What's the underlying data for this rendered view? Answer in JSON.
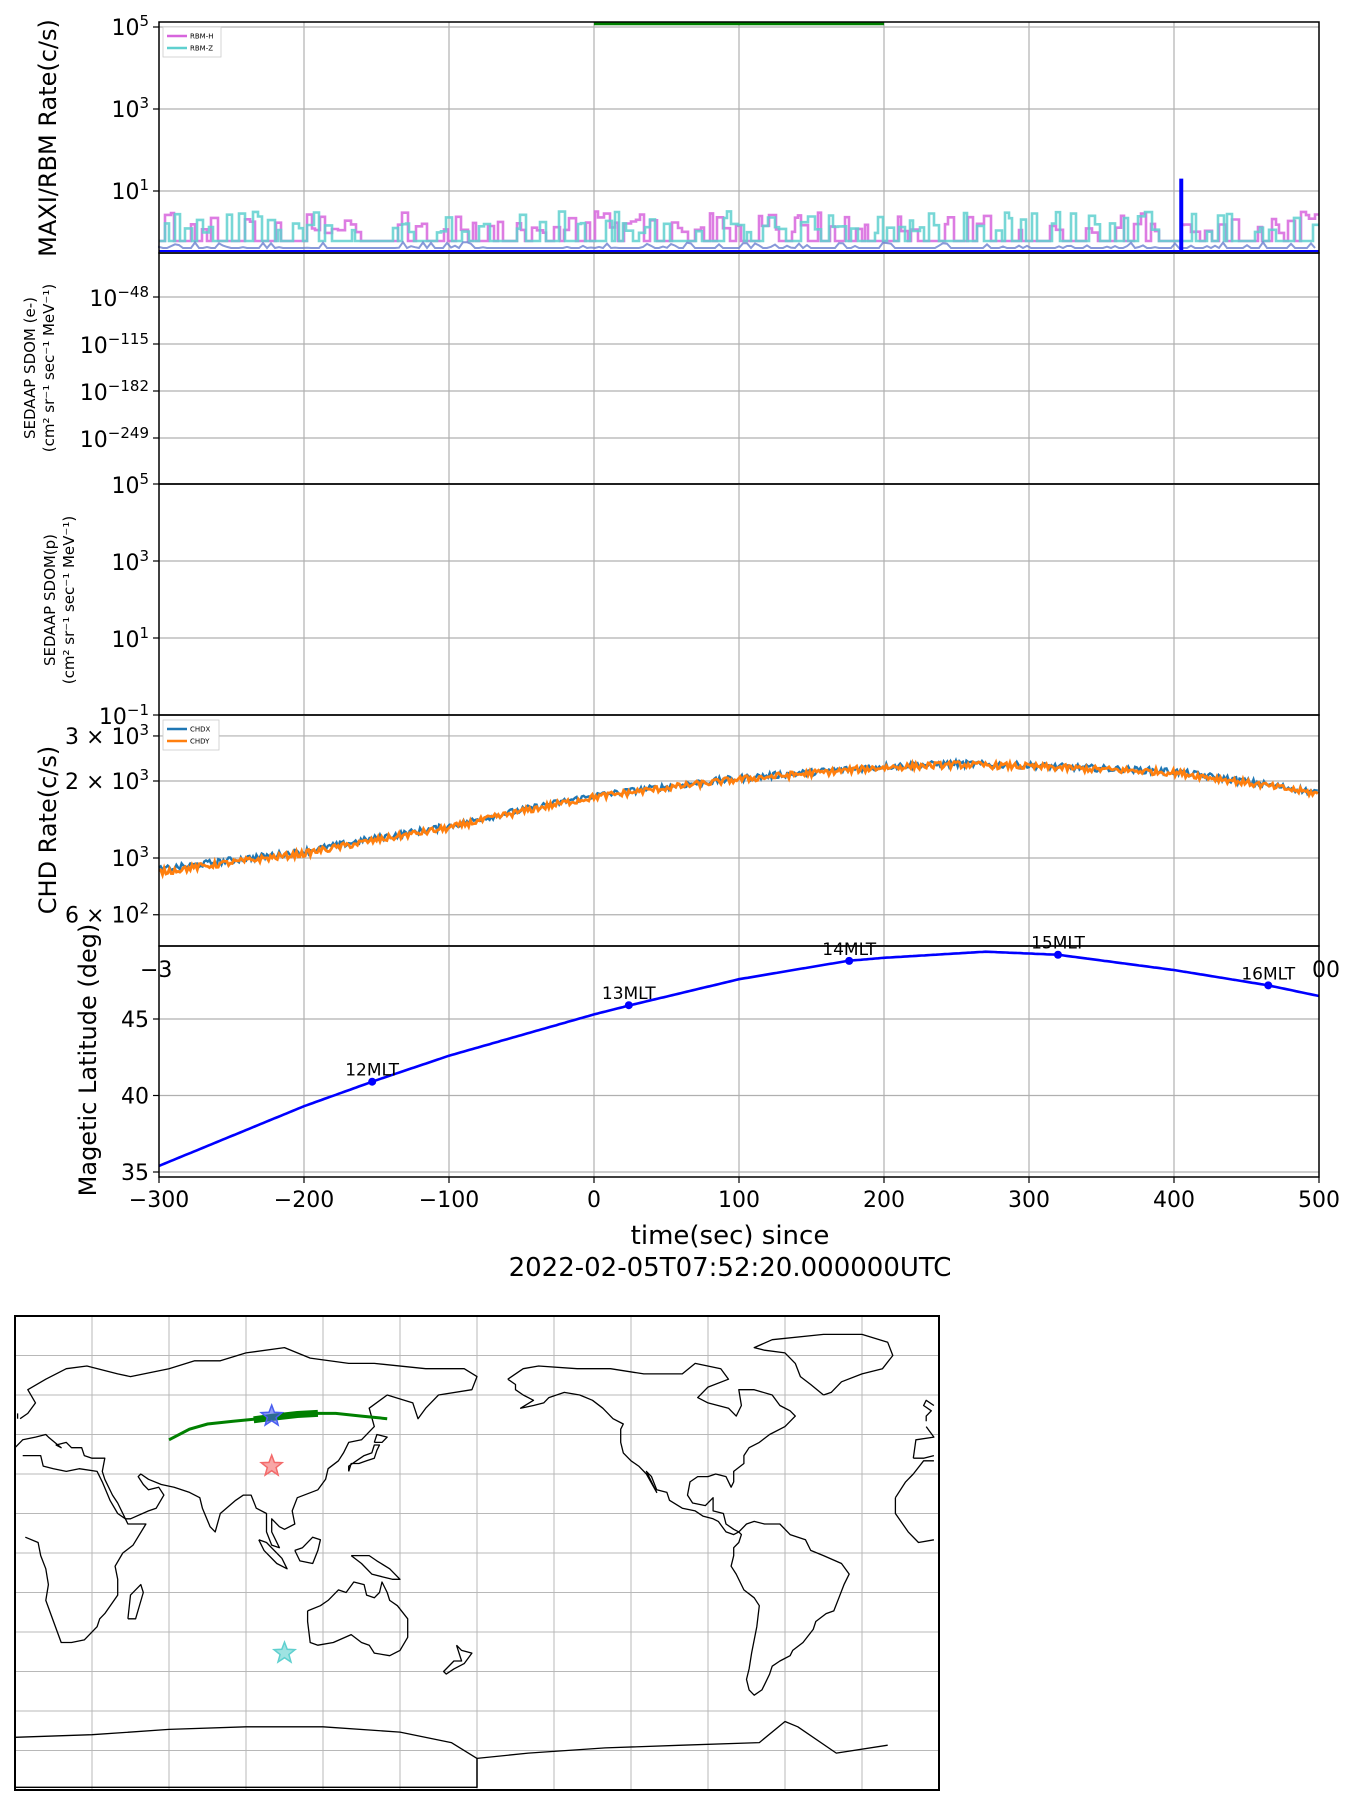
{
  "chart_data": [
    {
      "type": "line",
      "panel": "rbm",
      "ylabel": "MAXI/RBM Rate(c/s)",
      "yscale": "log",
      "yticks": [
        10,
        1000,
        100000
      ],
      "ytick_labels": [
        {
          "base": "10",
          "exp": "1"
        },
        {
          "base": "10",
          "exp": "3"
        },
        {
          "base": "10",
          "exp": "5"
        }
      ],
      "xlim": [
        -300,
        500
      ],
      "grid": true,
      "legend": {
        "position": "top-left",
        "entries": [
          {
            "name": "RBM-H",
            "color": "#d765dd"
          },
          {
            "name": "RBM-Z",
            "color": "#5fd0cf"
          }
        ]
      },
      "series": [
        {
          "name": "RBM-H",
          "color": "#d765dd",
          "approx_range": [
            1,
            3
          ]
        },
        {
          "name": "RBM-Z",
          "color": "#5fd0cf",
          "approx_range": [
            1,
            3
          ]
        }
      ],
      "annotations": [
        {
          "kind": "horizontal-bar",
          "x0": 0,
          "x1": 200,
          "y": 120000,
          "color": "#008000"
        },
        {
          "kind": "spike",
          "x": 405,
          "y": 20,
          "color": "#0000ff"
        }
      ]
    },
    {
      "type": "line",
      "panel": "sdom-e",
      "ylabel": [
        "SEDAAP SDOM (e-)",
        "(cm² sr⁻¹ sec⁻¹ MeV⁻¹)"
      ],
      "yscale": "log",
      "ytick_labels": [
        {
          "base": "10",
          "exp": "−48"
        },
        {
          "base": "10",
          "exp": "−115"
        },
        {
          "base": "10",
          "exp": "−182"
        },
        {
          "base": "10",
          "exp": "−249"
        }
      ],
      "xlim": [
        -300,
        500
      ],
      "grid": true,
      "series": []
    },
    {
      "type": "line",
      "panel": "sdom-p",
      "ylabel": [
        "SEDAAP SDOM(p)",
        "(cm² sr⁻¹ sec⁻¹ MeV⁻¹)"
      ],
      "yscale": "log",
      "ylim": [
        0.1,
        100000
      ],
      "ytick_labels": [
        {
          "base": "10",
          "exp": "5"
        },
        {
          "base": "10",
          "exp": "3"
        },
        {
          "base": "10",
          "exp": "1"
        },
        {
          "base": "10",
          "exp": "−1"
        }
      ],
      "xlim": [
        -300,
        500
      ],
      "grid": true,
      "series": []
    },
    {
      "type": "line",
      "panel": "chd",
      "ylabel": "CHD Rate(c/s)",
      "yscale": "log",
      "ylim": [
        500,
        3500
      ],
      "ytick_labels": [
        {
          "base": "3 × 10",
          "exp": "3",
          "value": 3000
        },
        {
          "base": "2 × 10",
          "exp": "3",
          "value": 2000
        },
        {
          "base": "10",
          "exp": "3",
          "value": 1000
        },
        {
          "base": "6 × 10",
          "exp": "2",
          "value": 600
        }
      ],
      "xlim": [
        -300,
        500
      ],
      "grid": true,
      "legend": {
        "position": "top-left",
        "entries": [
          {
            "name": "CHDX",
            "color": "#1f77b4"
          },
          {
            "name": "CHDY",
            "color": "#ff7f0e"
          }
        ]
      },
      "series": [
        {
          "name": "CHDX",
          "color": "#1f77b4",
          "x": [
            -300,
            -200,
            -100,
            0,
            100,
            200,
            250,
            300,
            400,
            500
          ],
          "y": [
            900,
            1060,
            1330,
            1750,
            2050,
            2280,
            2340,
            2300,
            2180,
            1800
          ]
        },
        {
          "name": "CHDY",
          "color": "#ff7f0e",
          "x": [
            -300,
            -200,
            -100,
            0,
            100,
            200,
            250,
            300,
            400,
            500
          ],
          "y": [
            880,
            1040,
            1310,
            1730,
            2030,
            2260,
            2320,
            2280,
            2160,
            1780
          ]
        }
      ]
    },
    {
      "type": "line",
      "panel": "maglat",
      "ylabel": "Magetic Latitude  (deg)",
      "xlabel": "time(sec) since",
      "xlabel2": "2022-02-05T07:52:20.000000UTC",
      "ylim": [
        35,
        50
      ],
      "yticks": [
        35,
        40,
        45
      ],
      "xlim": [
        -300,
        500
      ],
      "xticks": [
        -300,
        -200,
        -100,
        0,
        100,
        200,
        300,
        400,
        500
      ],
      "xtick_labels": [
        "−300",
        "−200",
        "−100",
        "0",
        "100",
        "200",
        "300",
        "400",
        "500"
      ],
      "grid": true,
      "series": [
        {
          "name": "",
          "color": "#0000ff",
          "x": [
            -300,
            -200,
            -150,
            -100,
            0,
            25,
            100,
            175,
            200,
            270,
            320,
            400,
            465,
            500
          ],
          "y": [
            35.4,
            39.3,
            41.0,
            42.6,
            45.3,
            45.9,
            47.6,
            48.8,
            49.0,
            49.4,
            49.2,
            48.2,
            47.2,
            46.5
          ]
        }
      ],
      "markers": [
        {
          "label": "12MLT",
          "x": -153,
          "y": 40.9
        },
        {
          "label": "13MLT",
          "x": 24,
          "y": 45.9
        },
        {
          "label": "14MLT",
          "x": 176,
          "y": 48.8
        },
        {
          "label": "15MLT",
          "x": 320,
          "y": 49.2
        },
        {
          "label": "16MLT",
          "x": 465,
          "y": 47.2
        }
      ],
      "overlap_tick_labels": [
        {
          "text": "−3",
          "near": "top-left"
        },
        {
          "text": "00",
          "near": "top-right"
        }
      ]
    },
    {
      "type": "map",
      "panel": "world-map",
      "projection": "plate-carree",
      "central_longitude": 180,
      "grid": true,
      "track_color": "#008000",
      "markers": [
        {
          "kind": "star",
          "color": "#4a5ef0",
          "lon": 100,
          "lat": 52
        },
        {
          "kind": "star",
          "color": "#f36a6a",
          "lon": 100,
          "lat": 33
        },
        {
          "kind": "star",
          "color": "#5fd0cf",
          "lon": 105,
          "lat": -38
        }
      ]
    }
  ]
}
